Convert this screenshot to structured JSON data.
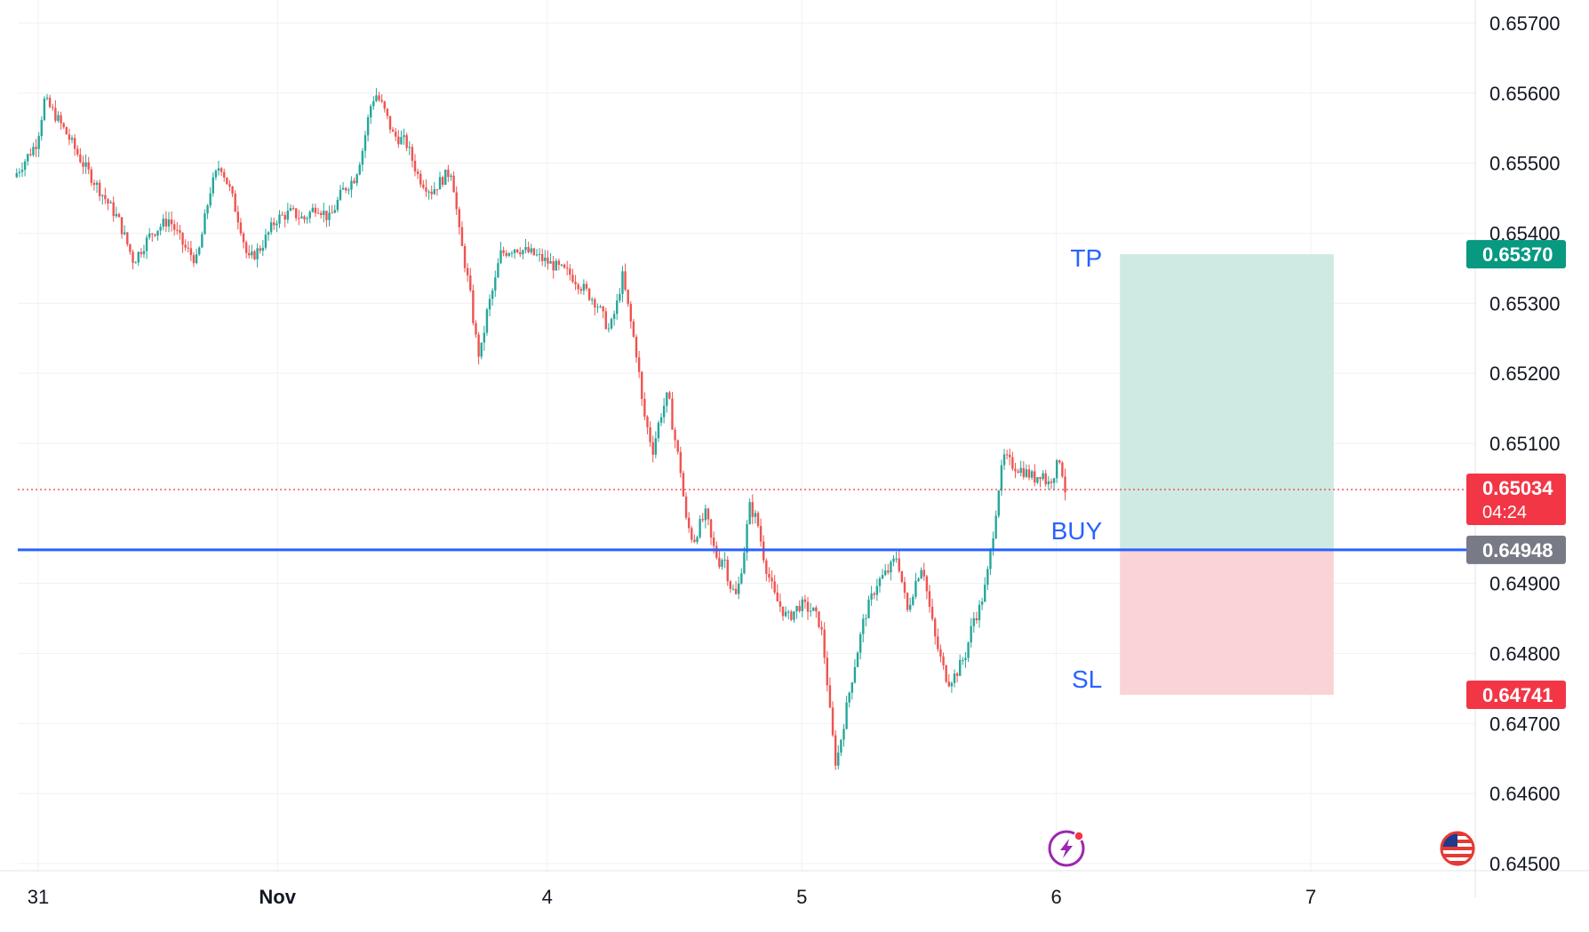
{
  "chart_data": {
    "type": "candlestick",
    "title": "",
    "y_axis": {
      "ticks": [
        "0.65700",
        "0.65600",
        "0.65500",
        "0.65400",
        "0.65300",
        "0.65200",
        "0.65100",
        "0.64900",
        "0.64800",
        "0.64700",
        "0.64600",
        "0.64500"
      ],
      "range": [
        0.645,
        0.6572
      ]
    },
    "x_axis": {
      "ticks": [
        {
          "label": "31",
          "t": 0.0
        },
        {
          "label": "Nov",
          "t": 0.94
        },
        {
          "label": "4",
          "t": 2.0
        },
        {
          "label": "5",
          "t": 3.0
        },
        {
          "label": "6",
          "t": 4.0
        },
        {
          "label": "7",
          "t": 5.0
        }
      ],
      "range": [
        -0.09,
        5.6
      ]
    },
    "price_path": [
      [
        -0.09,
        0.6548
      ],
      [
        0.0,
        0.6553
      ],
      [
        0.03,
        0.6559
      ],
      [
        0.07,
        0.6557
      ],
      [
        0.12,
        0.6554
      ],
      [
        0.18,
        0.655
      ],
      [
        0.25,
        0.6546
      ],
      [
        0.32,
        0.6542
      ],
      [
        0.38,
        0.6536
      ],
      [
        0.45,
        0.654
      ],
      [
        0.52,
        0.6542
      ],
      [
        0.58,
        0.6538
      ],
      [
        0.63,
        0.6536
      ],
      [
        0.68,
        0.6546
      ],
      [
        0.72,
        0.655
      ],
      [
        0.76,
        0.6546
      ],
      [
        0.8,
        0.6541
      ],
      [
        0.83,
        0.6536
      ],
      [
        0.88,
        0.6538
      ],
      [
        0.94,
        0.6542
      ],
      [
        1.0,
        0.6543
      ],
      [
        1.05,
        0.6542
      ],
      [
        1.1,
        0.6544
      ],
      [
        1.15,
        0.6542
      ],
      [
        1.2,
        0.6546
      ],
      [
        1.25,
        0.6548
      ],
      [
        1.28,
        0.6552
      ],
      [
        1.31,
        0.6558
      ],
      [
        1.33,
        0.656
      ],
      [
        1.36,
        0.6558
      ],
      [
        1.4,
        0.6554
      ],
      [
        1.45,
        0.6553
      ],
      [
        1.5,
        0.6548
      ],
      [
        1.55,
        0.6546
      ],
      [
        1.6,
        0.6548
      ],
      [
        1.63,
        0.6549
      ],
      [
        1.66,
        0.654
      ],
      [
        1.7,
        0.6532
      ],
      [
        1.72,
        0.6526
      ],
      [
        1.74,
        0.6522
      ],
      [
        1.77,
        0.6529
      ],
      [
        1.8,
        0.6533
      ],
      [
        1.82,
        0.6537
      ],
      [
        1.88,
        0.6538
      ],
      [
        1.95,
        0.6537
      ],
      [
        2.0,
        0.6536
      ],
      [
        2.05,
        0.6535
      ],
      [
        2.1,
        0.6534
      ],
      [
        2.15,
        0.6532
      ],
      [
        2.2,
        0.653
      ],
      [
        2.25,
        0.6526
      ],
      [
        2.28,
        0.653
      ],
      [
        2.3,
        0.6534
      ],
      [
        2.33,
        0.6528
      ],
      [
        2.36,
        0.6522
      ],
      [
        2.38,
        0.6515
      ],
      [
        2.4,
        0.6512
      ],
      [
        2.42,
        0.6509
      ],
      [
        2.45,
        0.6514
      ],
      [
        2.48,
        0.6517
      ],
      [
        2.5,
        0.6512
      ],
      [
        2.53,
        0.6506
      ],
      [
        2.55,
        0.6499
      ],
      [
        2.58,
        0.6496
      ],
      [
        2.6,
        0.6498
      ],
      [
        2.63,
        0.65
      ],
      [
        2.65,
        0.6496
      ],
      [
        2.68,
        0.6493
      ],
      [
        2.7,
        0.6494
      ],
      [
        2.72,
        0.649
      ],
      [
        2.75,
        0.6488
      ],
      [
        2.78,
        0.6495
      ],
      [
        2.8,
        0.6501
      ],
      [
        2.83,
        0.6499
      ],
      [
        2.86,
        0.6493
      ],
      [
        2.9,
        0.6488
      ],
      [
        2.95,
        0.6485
      ],
      [
        3.0,
        0.6487
      ],
      [
        3.05,
        0.6486
      ],
      [
        3.08,
        0.6484
      ],
      [
        3.1,
        0.6478
      ],
      [
        3.12,
        0.647
      ],
      [
        3.14,
        0.6464
      ],
      [
        3.16,
        0.6468
      ],
      [
        3.2,
        0.6476
      ],
      [
        3.25,
        0.6485
      ],
      [
        3.3,
        0.649
      ],
      [
        3.35,
        0.6492
      ],
      [
        3.38,
        0.6494
      ],
      [
        3.4,
        0.649
      ],
      [
        3.42,
        0.6486
      ],
      [
        3.45,
        0.649
      ],
      [
        3.48,
        0.6493
      ],
      [
        3.5,
        0.6488
      ],
      [
        3.53,
        0.6482
      ],
      [
        3.56,
        0.6478
      ],
      [
        3.58,
        0.6476
      ],
      [
        3.61,
        0.6477
      ],
      [
        3.65,
        0.648
      ],
      [
        3.68,
        0.6485
      ],
      [
        3.7,
        0.6486
      ],
      [
        3.73,
        0.649
      ],
      [
        3.76,
        0.6498
      ],
      [
        3.78,
        0.6504
      ],
      [
        3.8,
        0.6508
      ],
      [
        3.83,
        0.6507
      ],
      [
        3.88,
        0.6506
      ],
      [
        3.92,
        0.6505
      ],
      [
        3.95,
        0.6506
      ],
      [
        3.97,
        0.6504
      ],
      [
        4.0,
        0.6506
      ],
      [
        4.02,
        0.6508
      ],
      [
        4.04,
        0.65034
      ]
    ],
    "annotations": {
      "tp": {
        "label": "TP",
        "price": 0.6537,
        "badge": "0.65370"
      },
      "entry": {
        "label": "BUY",
        "price": 0.64948,
        "badge": "0.64948"
      },
      "sl": {
        "label": "SL",
        "price": 0.64741,
        "badge": "0.64741"
      },
      "current": {
        "price": 0.65034,
        "badge": "0.65034",
        "countdown": "04:24"
      },
      "box_t_range": [
        4.25,
        5.09
      ]
    },
    "colors": {
      "up": "#26a69a",
      "down": "#ef5350",
      "entry_line": "#2962ff",
      "tp_fill": "#cfeae3",
      "sl_fill": "#f9d3d6",
      "tp_badge": "#089981",
      "sl_badge": "#f23645",
      "current_badge": "#f23645",
      "entry_badge": "#787b86",
      "annotation_text": "#2962ff",
      "grid": "#f0f1f3",
      "axis_text": "#131722"
    },
    "grid": true
  }
}
